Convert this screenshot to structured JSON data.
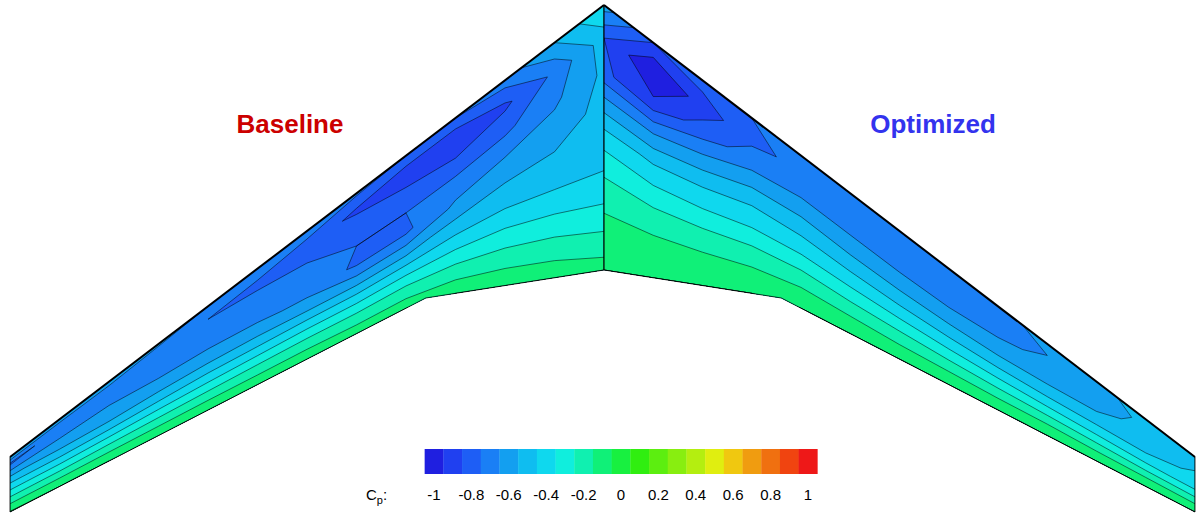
{
  "chart_data": {
    "type": "contour",
    "panels": [
      {
        "label": "Baseline",
        "color": "#cc0000",
        "cp": [
          [
            -0.3,
            -0.45,
            -0.48,
            -0.47,
            -0.45,
            -0.4,
            -0.3,
            -0.18,
            -0.05
          ],
          [
            -0.5,
            -0.68,
            -0.62,
            -0.55,
            -0.48,
            -0.4,
            -0.28,
            -0.15,
            -0.03
          ],
          [
            -0.65,
            -0.82,
            -0.72,
            -0.6,
            -0.5,
            -0.4,
            -0.27,
            -0.14,
            -0.02
          ],
          [
            -0.7,
            -0.9,
            -0.78,
            -0.66,
            -0.58,
            -0.45,
            -0.3,
            -0.15,
            -0.02
          ],
          [
            -0.7,
            -0.88,
            -0.76,
            -0.7,
            -0.72,
            -0.55,
            -0.35,
            -0.17,
            -0.03
          ],
          [
            -0.68,
            -0.82,
            -0.72,
            -0.7,
            -0.72,
            -0.55,
            -0.35,
            -0.17,
            -0.03
          ],
          [
            -0.65,
            -0.75,
            -0.7,
            -0.68,
            -0.62,
            -0.5,
            -0.32,
            -0.15,
            -0.02
          ],
          [
            -0.62,
            -0.72,
            -0.68,
            -0.65,
            -0.58,
            -0.46,
            -0.3,
            -0.14,
            -0.02
          ],
          [
            -0.6,
            -0.7,
            -0.66,
            -0.62,
            -0.55,
            -0.42,
            -0.28,
            -0.13,
            -0.01
          ],
          [
            -0.58,
            -0.68,
            -0.64,
            -0.6,
            -0.52,
            -0.4,
            -0.26,
            -0.12,
            -0.01
          ],
          [
            -0.56,
            -0.66,
            -0.62,
            -0.57,
            -0.5,
            -0.38,
            -0.24,
            -0.11,
            0.0
          ],
          [
            -0.55,
            -0.68,
            -0.62,
            -0.55,
            -0.46,
            -0.34,
            -0.22,
            -0.1,
            0.0
          ],
          [
            -0.5,
            -0.72,
            -0.6,
            -0.48,
            -0.38,
            -0.28,
            -0.18,
            -0.08,
            0.01
          ]
        ]
      },
      {
        "label": "Optimized",
        "color": "#3333ee",
        "cp": [
          [
            -0.55,
            -0.8,
            -0.78,
            -0.55,
            -0.35,
            -0.22,
            -0.12,
            -0.05,
            0.0
          ],
          [
            -0.8,
            -1.0,
            -0.88,
            -0.62,
            -0.42,
            -0.28,
            -0.15,
            -0.06,
            0.0
          ],
          [
            -0.75,
            -0.86,
            -0.75,
            -0.58,
            -0.42,
            -0.3,
            -0.17,
            -0.07,
            0.0
          ],
          [
            -0.7,
            -0.72,
            -0.65,
            -0.52,
            -0.4,
            -0.3,
            -0.18,
            -0.08,
            0.0
          ],
          [
            -0.68,
            -0.68,
            -0.62,
            -0.52,
            -0.42,
            -0.32,
            -0.2,
            -0.09,
            0.0
          ],
          [
            -0.67,
            -0.67,
            -0.63,
            -0.55,
            -0.45,
            -0.34,
            -0.22,
            -0.1,
            0.0
          ],
          [
            -0.66,
            -0.67,
            -0.64,
            -0.57,
            -0.47,
            -0.36,
            -0.23,
            -0.11,
            0.0
          ],
          [
            -0.65,
            -0.66,
            -0.64,
            -0.58,
            -0.48,
            -0.37,
            -0.24,
            -0.11,
            0.0
          ],
          [
            -0.62,
            -0.64,
            -0.62,
            -0.57,
            -0.48,
            -0.37,
            -0.24,
            -0.11,
            0.0
          ],
          [
            -0.58,
            -0.6,
            -0.58,
            -0.54,
            -0.46,
            -0.36,
            -0.23,
            -0.1,
            0.0
          ],
          [
            -0.53,
            -0.55,
            -0.53,
            -0.5,
            -0.43,
            -0.34,
            -0.22,
            -0.1,
            0.0
          ],
          [
            -0.46,
            -0.48,
            -0.47,
            -0.45,
            -0.4,
            -0.32,
            -0.21,
            -0.09,
            0.0
          ],
          [
            -0.4,
            -0.42,
            -0.4,
            -0.38,
            -0.35,
            -0.28,
            -0.18,
            -0.08,
            0.0
          ]
        ]
      }
    ],
    "colorbar": {
      "title": "Cp:",
      "range": [
        -1,
        1
      ],
      "levels": [
        -1,
        -0.9,
        -0.8,
        -0.7,
        -0.6,
        -0.5,
        -0.4,
        -0.3,
        -0.2,
        -0.1,
        0,
        0.1,
        0.2,
        0.3,
        0.4,
        0.5,
        0.6,
        0.7,
        0.8,
        0.9,
        1
      ],
      "colors": [
        "#1f1fe0",
        "#2040f0",
        "#1e5ef5",
        "#1a7ff5",
        "#139ff0",
        "#0fbdf0",
        "#0fd8ee",
        "#10eedd",
        "#10f0b0",
        "#10f078",
        "#18f040",
        "#30ee10",
        "#5cee10",
        "#88ee10",
        "#b4ee10",
        "#e0ee10",
        "#f0c810",
        "#f09c10",
        "#f07010",
        "#f04410",
        "#ee1818"
      ],
      "ticks": [
        -1,
        -0.8,
        -0.6,
        -0.4,
        -0.2,
        0,
        0.2,
        0.4,
        0.6,
        0.8,
        1
      ]
    }
  }
}
